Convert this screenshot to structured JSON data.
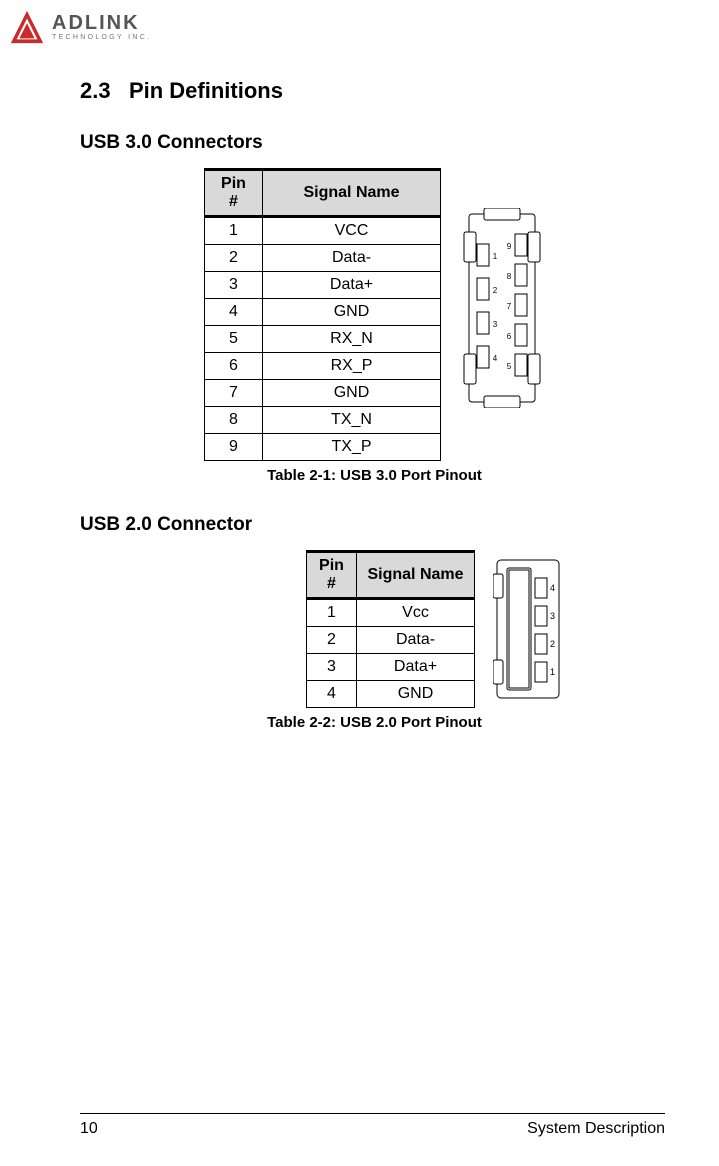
{
  "logo": {
    "brand": "ADLINK",
    "tagline": "TECHNOLOGY INC.",
    "triangle_color": "#c92a2a",
    "text_color": "#555555"
  },
  "header": {
    "section_number": "2.3",
    "section_title": "Pin Definitions"
  },
  "usb3": {
    "heading": "USB 3.0 Connectors",
    "col_pin": "Pin #",
    "col_signal": "Signal Name",
    "rows": [
      {
        "pin": "1",
        "signal": "VCC"
      },
      {
        "pin": "2",
        "signal": "Data-"
      },
      {
        "pin": "3",
        "signal": "Data+"
      },
      {
        "pin": "4",
        "signal": "GND"
      },
      {
        "pin": "5",
        "signal": "RX_N"
      },
      {
        "pin": "6",
        "signal": "RX_P"
      },
      {
        "pin": "7",
        "signal": "GND"
      },
      {
        "pin": "8",
        "signal": "TX_N"
      },
      {
        "pin": "9",
        "signal": "TX_P"
      }
    ],
    "caption": "Table  2-1: USB 3.0 Port Pinout",
    "diagram": {
      "stroke": "#000000",
      "fill": "#ffffff",
      "pin_labels_left": [
        "1",
        "2",
        "3",
        "4"
      ],
      "pin_labels_right": [
        "9",
        "8",
        "7",
        "6",
        "5"
      ]
    }
  },
  "usb2": {
    "heading": "USB 2.0 Connector",
    "col_pin": "Pin #",
    "col_signal": "Signal Name",
    "rows": [
      {
        "pin": "1",
        "signal": "Vcc"
      },
      {
        "pin": "2",
        "signal": "Data-"
      },
      {
        "pin": "3",
        "signal": "Data+"
      },
      {
        "pin": "4",
        "signal": "GND"
      }
    ],
    "caption": "Table  2-2: USB 2.0 Port Pinout",
    "diagram": {
      "stroke": "#000000",
      "fill": "#ffffff",
      "pin_labels": [
        "4",
        "3",
        "2",
        "1"
      ]
    }
  },
  "footer": {
    "page_number": "10",
    "chapter": "System Description"
  },
  "table_style": {
    "header_bg": "#d9d9d9",
    "border_color": "#000000",
    "font_size": 16
  }
}
